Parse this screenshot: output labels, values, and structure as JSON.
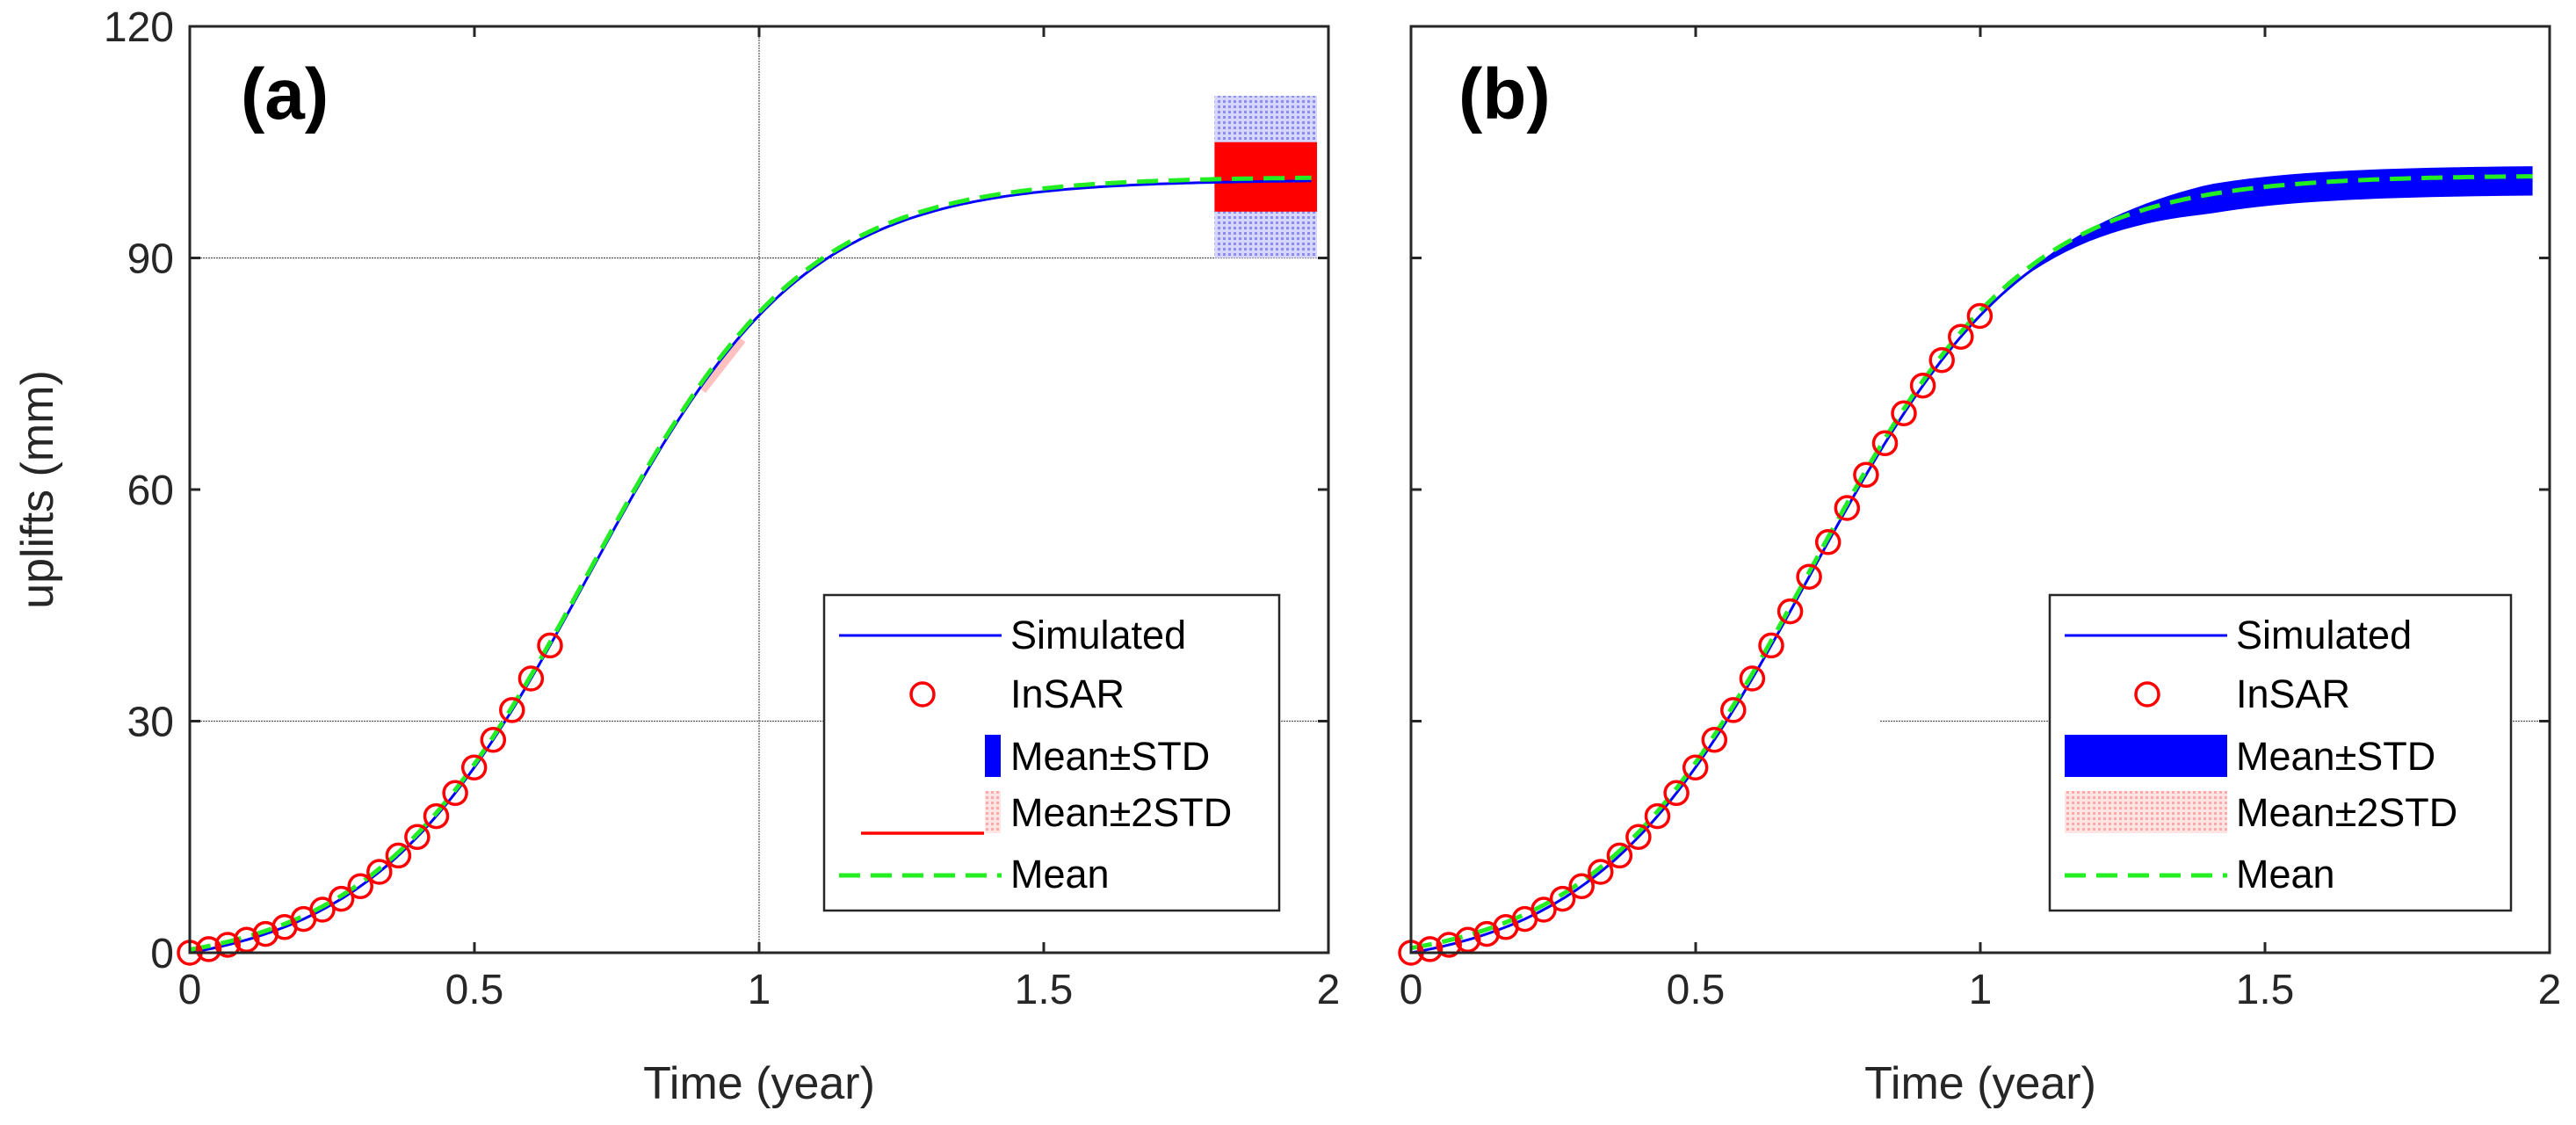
{
  "chart_data": [
    {
      "type": "line",
      "panel_label": "(a)",
      "xlabel": "Time (year)",
      "ylabel": "uplifts (mm)",
      "xlim": [
        0,
        2
      ],
      "ylim": [
        0,
        120
      ],
      "xticks": [
        "0",
        "0.5",
        "1",
        "1.5",
        "2"
      ],
      "yticks": [
        "0",
        "30",
        "60",
        "90",
        "120"
      ],
      "insar_until": 0.66,
      "legend": {
        "position": "lower-right",
        "entries": [
          "Simulated",
          "InSAR",
          "Mean±STD",
          "Mean±2STD",
          "Mean"
        ]
      },
      "colors": {
        "simulated": "#0000ff",
        "insar": "#ff0000",
        "mean": "#22ee22",
        "std": "#ff0000",
        "std2": "#9999ee"
      }
    },
    {
      "type": "line",
      "panel_label": "(b)",
      "xlabel": "Time (year)",
      "ylabel": "",
      "xlim": [
        0,
        2
      ],
      "ylim": [
        0,
        120
      ],
      "xticks": [
        "0",
        "0.5",
        "1",
        "1.5",
        "2"
      ],
      "yticks": [],
      "insar_until": 1.02,
      "legend": {
        "position": "lower-right",
        "entries": [
          "Simulated",
          "InSAR",
          "Mean±STD",
          "Mean±2STD",
          "Mean"
        ]
      },
      "colors": {
        "simulated": "#0000ff",
        "insar": "#ff0000",
        "mean": "#22ee22",
        "std": "#0000ff",
        "std2": "#ffaaaa"
      }
    }
  ]
}
